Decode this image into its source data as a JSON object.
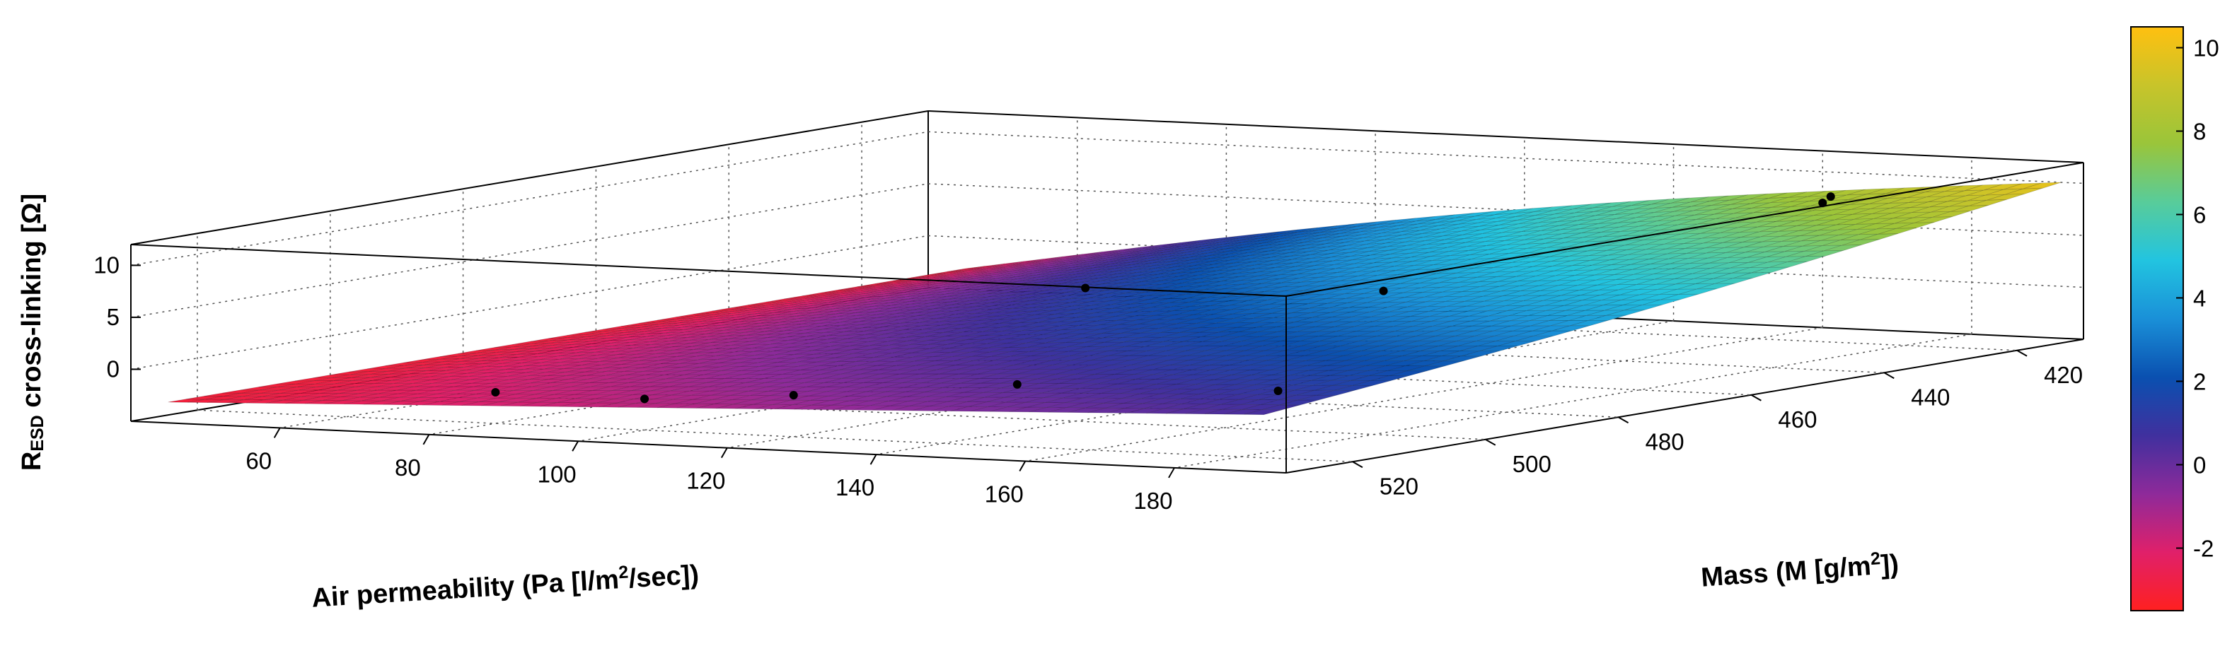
{
  "chart_data": {
    "type": "surface3d",
    "zlabel": {
      "main": "R",
      "sub": "ESD",
      "rest": " cross-linking [Ω]"
    },
    "xlabel": {
      "main": "Air permeability (Pa [l/m",
      "sup": "2",
      "rest": "/sec])"
    },
    "ylabel": {
      "main": "Mass (M [g/m",
      "sup": "2",
      "rest": "])"
    },
    "x_ticks": [
      60,
      80,
      100,
      120,
      140,
      160,
      180
    ],
    "y_ticks": [
      420,
      440,
      460,
      480,
      500,
      520
    ],
    "z_ticks": [
      0,
      5,
      10
    ],
    "xlim": [
      40,
      195
    ],
    "ylim": [
      410,
      530
    ],
    "zlim": [
      -5,
      12
    ],
    "colorbar": {
      "ticks": [
        -2,
        0,
        2,
        4,
        6,
        8,
        10
      ],
      "range": [
        -3.5,
        10.5
      ],
      "colormap": [
        "#ff2020",
        "#e0206a",
        "#8e2a9a",
        "#40309e",
        "#0a50b0",
        "#1a90d8",
        "#22c4e0",
        "#58cc9a",
        "#9ac53a",
        "#c8c42a",
        "#ffc010"
      ]
    },
    "surface": {
      "x_range": [
        45,
        192
      ],
      "y_range": [
        410,
        530
      ],
      "nx": 56,
      "ny": 44,
      "values_at_corners": {
        "x45_y410": -3.0,
        "x45_y530": -3.0,
        "x192_y410": 10.0,
        "x192_y530": 0.5
      }
    },
    "points": [
      {
        "x": 80,
        "y": 520,
        "z": -2
      },
      {
        "x": 100,
        "y": 520,
        "z": -2
      },
      {
        "x": 120,
        "y": 520,
        "z": -1
      },
      {
        "x": 150,
        "y": 520,
        "z": 1
      },
      {
        "x": 185,
        "y": 520,
        "z": 1.5
      },
      {
        "x": 70,
        "y": 420,
        "z": -3
      },
      {
        "x": 110,
        "y": 420,
        "z": -2
      },
      {
        "x": 170,
        "y": 420,
        "z": 9
      },
      {
        "x": 160,
        "y": 410,
        "z": 7
      }
    ],
    "grid": true
  }
}
